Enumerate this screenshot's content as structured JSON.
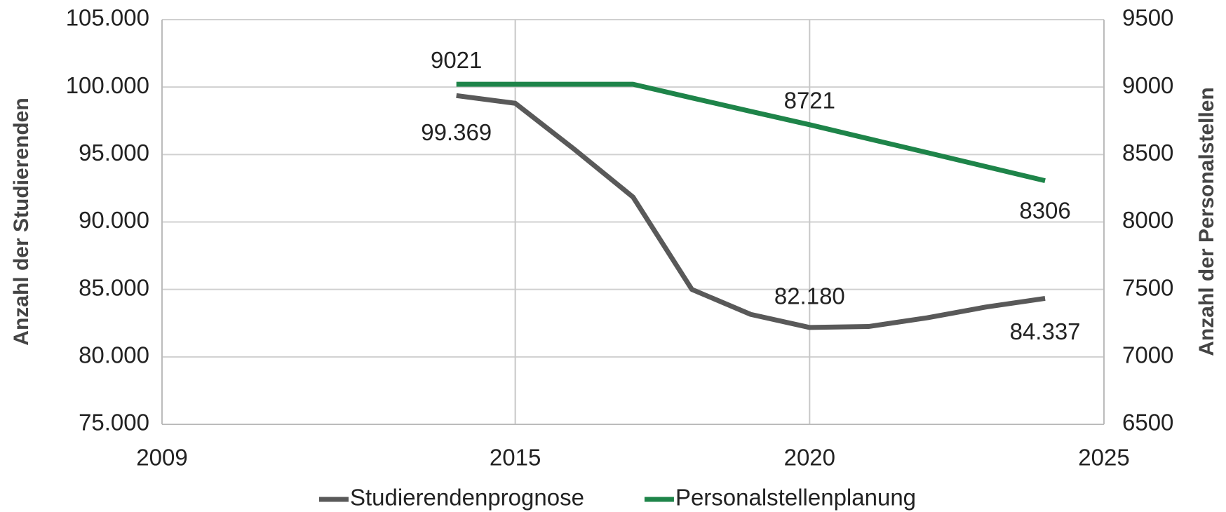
{
  "chart_data": {
    "type": "line",
    "y_label": "Anzahl der Studierenden",
    "y2_label": "Anzahl der Personalstellen",
    "x": [
      2014,
      2015,
      2016,
      2017,
      2018,
      2019,
      2020,
      2021,
      2022,
      2023,
      2024
    ],
    "series": [
      {
        "name": "Studierendenprognose",
        "color": "#595959",
        "values": [
          99369,
          98800,
          95400,
          91850,
          85000,
          83150,
          82180,
          82250,
          82900,
          83700,
          84337
        ],
        "value_labels": [
          "99.369",
          null,
          null,
          null,
          null,
          null,
          "82.180",
          null,
          null,
          null,
          "84.337"
        ]
      },
      {
        "name": "Personalstellenplanung",
        "color": "#1e8449",
        "axis": "y2",
        "values": [
          9021,
          9021,
          9021,
          9021,
          8920,
          8820,
          8721,
          8617,
          8514,
          8410,
          8306
        ],
        "value_labels": [
          "9021",
          null,
          null,
          null,
          null,
          null,
          "8721",
          null,
          null,
          null,
          "8306"
        ]
      }
    ],
    "xlim": [
      2009,
      2025
    ],
    "xticks": [
      2009,
      2015,
      2020,
      2025
    ],
    "ylim": [
      75000,
      105000
    ],
    "yticks": [
      {
        "value": 75000,
        "label": "75.000"
      },
      {
        "value": 80000,
        "label": "80.000"
      },
      {
        "value": 85000,
        "label": "85.000"
      },
      {
        "value": 90000,
        "label": "90.000"
      },
      {
        "value": 95000,
        "label": "95.000"
      },
      {
        "value": 100000,
        "label": "100.000"
      },
      {
        "value": 105000,
        "label": "105.000"
      }
    ],
    "y2lim": [
      6500,
      9500
    ],
    "y2ticks": [
      6500,
      7000,
      7500,
      8000,
      8500,
      9000,
      9500
    ],
    "grid": true,
    "legend": "bottom"
  }
}
